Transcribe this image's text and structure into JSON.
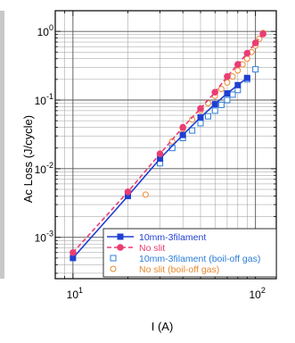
{
  "chart_data": {
    "type": "scatter",
    "xlabel": "I (A)",
    "ylabel": "Ac Loss (J/cycle)",
    "xscale": "log",
    "yscale": "log",
    "xlim": [
      8,
      130
    ],
    "ylim": [
      0.00025,
      2
    ],
    "grid": true,
    "legend": "bottom-right",
    "x_ticks": [
      {
        "base": "10",
        "exp": "1",
        "value": 10
      },
      {
        "base": "10",
        "exp": "2",
        "value": 100
      }
    ],
    "y_ticks": [
      {
        "base": "10",
        "exp": "-3",
        "value": 0.001
      },
      {
        "base": "10",
        "exp": "-2",
        "value": 0.01
      },
      {
        "base": "10",
        "exp": "-1",
        "value": 0.1
      },
      {
        "base": "10",
        "exp": "0",
        "value": 1
      }
    ],
    "series": [
      {
        "name": "10mm-3filament",
        "color": "#1f3fd0",
        "marker": "filled-square",
        "line": "solid",
        "x": [
          10,
          20,
          30,
          40,
          50,
          60,
          70,
          80,
          90
        ],
        "y": [
          0.0005,
          0.004,
          0.014,
          0.031,
          0.056,
          0.087,
          0.125,
          0.165,
          0.21
        ]
      },
      {
        "name": "No slit",
        "color": "#ea3d73",
        "marker": "filled-circle",
        "line": "dashed",
        "x": [
          10,
          20,
          30,
          40,
          50,
          60,
          70,
          80,
          90,
          100,
          110
        ],
        "y": [
          0.0006,
          0.0046,
          0.0165,
          0.04,
          0.075,
          0.13,
          0.22,
          0.33,
          0.48,
          0.68,
          0.92
        ]
      },
      {
        "name": "10mm-3filament (boil-off gas)",
        "color": "#2b7cd9",
        "marker": "open-square",
        "line": "none",
        "x": [
          30,
          35,
          40,
          45,
          50,
          55,
          60,
          65,
          70,
          75,
          80,
          90,
          100
        ],
        "y": [
          0.012,
          0.02,
          0.028,
          0.036,
          0.046,
          0.058,
          0.07,
          0.085,
          0.1,
          0.12,
          0.14,
          0.2,
          0.28
        ]
      },
      {
        "name": "No slit (boil-off gas)",
        "color": "#e8892e",
        "marker": "open-circle",
        "line": "none",
        "x": [
          25,
          30,
          35,
          40,
          45,
          50,
          55,
          60,
          65,
          70,
          75,
          80,
          85,
          90,
          95,
          100,
          105,
          110
        ],
        "y": [
          0.0042,
          0.014,
          0.025,
          0.038,
          0.052,
          0.07,
          0.09,
          0.115,
          0.145,
          0.18,
          0.22,
          0.27,
          0.33,
          0.4,
          0.5,
          0.62,
          0.78,
          0.95
        ]
      }
    ]
  }
}
